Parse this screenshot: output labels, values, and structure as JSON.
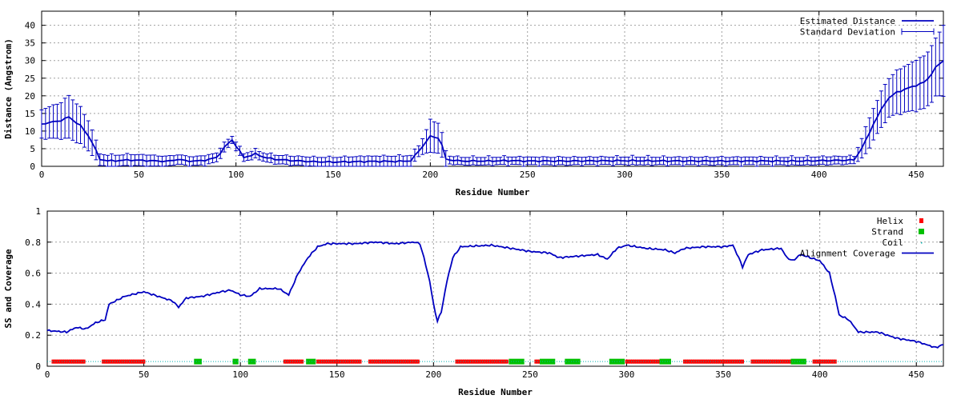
{
  "chart_data": [
    {
      "type": "line",
      "xlabel": "Residue Number",
      "ylabel": "Distance (Angstrom)",
      "xlim": [
        0,
        464
      ],
      "ylim": [
        0,
        44
      ],
      "xticks": [
        0,
        50,
        100,
        150,
        200,
        250,
        300,
        350,
        400,
        450
      ],
      "yticks": [
        0,
        5,
        10,
        15,
        20,
        25,
        30,
        35,
        40
      ],
      "grid": true,
      "legend_position": "top-right",
      "series": [
        {
          "name": "Estimated Distance",
          "color": "#0000c0",
          "profile": [
            [
              0,
              12
            ],
            [
              5,
              12.5
            ],
            [
              10,
              13
            ],
            [
              14,
              14
            ],
            [
              20,
              11.5
            ],
            [
              25,
              8
            ],
            [
              30,
              2
            ],
            [
              35,
              1.5
            ],
            [
              45,
              1.8
            ],
            [
              55,
              1.6
            ],
            [
              60,
              1.5
            ],
            [
              65,
              1.4
            ],
            [
              70,
              2
            ],
            [
              75,
              1.5
            ],
            [
              80,
              1.5
            ],
            [
              85,
              1.8
            ],
            [
              90,
              2.5
            ],
            [
              95,
              6
            ],
            [
              98,
              7.5
            ],
            [
              101,
              5
            ],
            [
              104,
              2.5
            ],
            [
              110,
              3.5
            ],
            [
              115,
              2.5
            ],
            [
              120,
              2
            ],
            [
              130,
              1.6
            ],
            [
              140,
              1.3
            ],
            [
              150,
              1.2
            ],
            [
              160,
              1.3
            ],
            [
              170,
              1.4
            ],
            [
              185,
              1.4
            ],
            [
              190,
              1.6
            ],
            [
              195,
              5
            ],
            [
              200,
              8.5
            ],
            [
              205,
              8
            ],
            [
              208,
              2
            ],
            [
              215,
              1.5
            ],
            [
              230,
              1.5
            ],
            [
              240,
              1.6
            ],
            [
              250,
              1.5
            ],
            [
              270,
              1.5
            ],
            [
              300,
              1.6
            ],
            [
              330,
              1.5
            ],
            [
              360,
              1.5
            ],
            [
              390,
              1.5
            ],
            [
              410,
              1.7
            ],
            [
              418,
              1.8
            ],
            [
              423,
              6
            ],
            [
              428,
              12
            ],
            [
              435,
              19
            ],
            [
              440,
              21
            ],
            [
              445,
              22
            ],
            [
              450,
              23
            ],
            [
              455,
              24
            ],
            [
              460,
              28
            ],
            [
              464,
              30
            ]
          ]
        },
        {
          "name": "Standard Deviation",
          "color": "#0000c0",
          "sd_profile": [
            [
              0,
              4
            ],
            [
              10,
              5
            ],
            [
              14,
              6
            ],
            [
              20,
              5
            ],
            [
              25,
              4
            ],
            [
              30,
              1.5
            ],
            [
              55,
              1.5
            ],
            [
              70,
              1.2
            ],
            [
              95,
              1.2
            ],
            [
              98,
              1
            ],
            [
              195,
              1.5
            ],
            [
              200,
              4.5
            ],
            [
              205,
              4
            ],
            [
              210,
              1
            ],
            [
              418,
              1
            ],
            [
              425,
              4
            ],
            [
              440,
              6
            ],
            [
              460,
              8
            ],
            [
              464,
              10
            ]
          ]
        }
      ]
    },
    {
      "type": "line",
      "xlabel": "Residue Number",
      "ylabel": "SS and Coverage",
      "xlim": [
        0,
        464
      ],
      "ylim": [
        0,
        1
      ],
      "xticks": [
        0,
        50,
        100,
        150,
        200,
        250,
        300,
        350,
        400,
        450
      ],
      "yticks": [
        0,
        0.2,
        0.4,
        0.6,
        0.8,
        1
      ],
      "grid": true,
      "legend_position": "top-right",
      "series": [
        {
          "name": "Helix",
          "color": "#ff0000",
          "y": 0.03,
          "ranges": [
            [
              3,
              19
            ],
            [
              29,
              50
            ],
            [
              123,
              132
            ],
            [
              140,
              162
            ],
            [
              167,
              192
            ],
            [
              212,
              238
            ],
            [
              253,
              255
            ],
            [
              300,
              320
            ],
            [
              330,
              360
            ],
            [
              365,
              385
            ],
            [
              397,
              408
            ]
          ]
        },
        {
          "name": "Strand",
          "color": "#00c000",
          "y": 0.03,
          "ranges": [
            [
              76,
              80
            ],
            [
              96,
              99
            ],
            [
              104,
              108
            ],
            [
              134,
              139
            ],
            [
              239,
              247
            ],
            [
              255,
              263
            ],
            [
              268,
              276
            ],
            [
              291,
              299
            ],
            [
              317,
              323
            ],
            [
              385,
              393
            ]
          ]
        },
        {
          "name": "Coil",
          "color": "#00b0b0",
          "y": 0.03,
          "ranges": [
            [
              0,
              464
            ]
          ]
        },
        {
          "name": "Alignment Coverage",
          "color": "#0000c0",
          "profile": [
            [
              0,
              0.23
            ],
            [
              10,
              0.22
            ],
            [
              15,
              0.25
            ],
            [
              20,
              0.24
            ],
            [
              25,
              0.28
            ],
            [
              30,
              0.3
            ],
            [
              32,
              0.4
            ],
            [
              40,
              0.45
            ],
            [
              50,
              0.48
            ],
            [
              55,
              0.46
            ],
            [
              60,
              0.44
            ],
            [
              65,
              0.42
            ],
            [
              68,
              0.38
            ],
            [
              72,
              0.44
            ],
            [
              80,
              0.45
            ],
            [
              90,
              0.48
            ],
            [
              95,
              0.49
            ],
            [
              100,
              0.46
            ],
            [
              105,
              0.45
            ],
            [
              110,
              0.5
            ],
            [
              120,
              0.5
            ],
            [
              125,
              0.46
            ],
            [
              130,
              0.6
            ],
            [
              135,
              0.7
            ],
            [
              140,
              0.77
            ],
            [
              145,
              0.79
            ],
            [
              160,
              0.79
            ],
            [
              170,
              0.8
            ],
            [
              180,
              0.79
            ],
            [
              190,
              0.8
            ],
            [
              193,
              0.79
            ],
            [
              195,
              0.7
            ],
            [
              198,
              0.55
            ],
            [
              200,
              0.4
            ],
            [
              202,
              0.29
            ],
            [
              204,
              0.35
            ],
            [
              207,
              0.55
            ],
            [
              210,
              0.7
            ],
            [
              214,
              0.77
            ],
            [
              230,
              0.78
            ],
            [
              240,
              0.76
            ],
            [
              250,
              0.74
            ],
            [
              260,
              0.73
            ],
            [
              265,
              0.7
            ],
            [
              275,
              0.71
            ],
            [
              285,
              0.72
            ],
            [
              290,
              0.69
            ],
            [
              295,
              0.76
            ],
            [
              300,
              0.78
            ],
            [
              310,
              0.76
            ],
            [
              320,
              0.75
            ],
            [
              325,
              0.73
            ],
            [
              330,
              0.76
            ],
            [
              340,
              0.77
            ],
            [
              350,
              0.77
            ],
            [
              355,
              0.78
            ],
            [
              358,
              0.7
            ],
            [
              360,
              0.64
            ],
            [
              363,
              0.72
            ],
            [
              370,
              0.75
            ],
            [
              380,
              0.76
            ],
            [
              383,
              0.7
            ],
            [
              386,
              0.68
            ],
            [
              390,
              0.72
            ],
            [
              395,
              0.7
            ],
            [
              400,
              0.68
            ],
            [
              405,
              0.6
            ],
            [
              408,
              0.45
            ],
            [
              410,
              0.33
            ],
            [
              415,
              0.3
            ],
            [
              420,
              0.22
            ],
            [
              430,
              0.22
            ],
            [
              440,
              0.18
            ],
            [
              450,
              0.16
            ],
            [
              455,
              0.14
            ],
            [
              460,
              0.12
            ],
            [
              464,
              0.14
            ]
          ]
        }
      ]
    }
  ]
}
